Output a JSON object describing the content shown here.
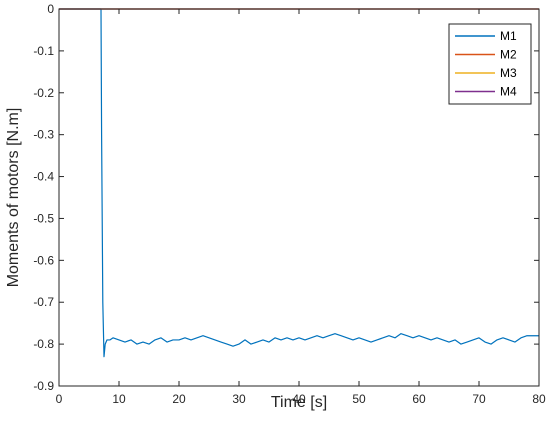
{
  "chart_data": {
    "type": "line",
    "title": "",
    "xlabel": "Time [s]",
    "ylabel": "Moments of motors [N.m]",
    "xlim": [
      0,
      80
    ],
    "ylim": [
      -0.9,
      0
    ],
    "xticks": [
      0,
      10,
      20,
      30,
      40,
      50,
      60,
      70,
      80
    ],
    "yticks": [
      0,
      -0.1,
      -0.2,
      -0.3,
      -0.4,
      -0.5,
      -0.6,
      -0.7,
      -0.8,
      -0.9
    ],
    "xtick_labels": [
      "0",
      "10",
      "20",
      "30",
      "40",
      "50",
      "60",
      "70",
      "80"
    ],
    "ytick_labels": [
      "0",
      "-0.1",
      "-0.2",
      "-0.3",
      "-0.4",
      "-0.5",
      "-0.6",
      "-0.7",
      "-0.8",
      "-0.9"
    ],
    "grid": false,
    "legend_position": "top-right",
    "series": [
      {
        "name": "M1",
        "color": "#0072BD",
        "x": [
          0,
          7.0,
          7.1,
          7.3,
          7.5,
          7.7,
          8.0,
          8.5,
          9,
          10,
          11,
          12,
          13,
          14,
          15,
          16,
          17,
          18,
          19,
          20,
          21,
          22,
          23,
          24,
          25,
          26,
          27,
          28,
          29,
          30,
          31,
          32,
          33,
          34,
          35,
          36,
          37,
          38,
          39,
          40,
          41,
          42,
          43,
          44,
          45,
          46,
          47,
          48,
          49,
          50,
          51,
          52,
          53,
          54,
          55,
          56,
          57,
          58,
          59,
          60,
          61,
          62,
          63,
          64,
          65,
          66,
          67,
          68,
          69,
          70,
          71,
          72,
          73,
          74,
          75,
          76,
          77,
          78,
          79,
          80
        ],
        "y": [
          0,
          0,
          -0.3,
          -0.7,
          -0.83,
          -0.8,
          -0.79,
          -0.79,
          -0.785,
          -0.79,
          -0.795,
          -0.79,
          -0.8,
          -0.795,
          -0.8,
          -0.79,
          -0.785,
          -0.795,
          -0.79,
          -0.79,
          -0.785,
          -0.79,
          -0.785,
          -0.78,
          -0.785,
          -0.79,
          -0.795,
          -0.8,
          -0.805,
          -0.8,
          -0.79,
          -0.8,
          -0.795,
          -0.79,
          -0.795,
          -0.785,
          -0.79,
          -0.785,
          -0.79,
          -0.785,
          -0.79,
          -0.785,
          -0.78,
          -0.785,
          -0.78,
          -0.775,
          -0.78,
          -0.785,
          -0.79,
          -0.785,
          -0.79,
          -0.795,
          -0.79,
          -0.785,
          -0.78,
          -0.785,
          -0.775,
          -0.78,
          -0.785,
          -0.78,
          -0.785,
          -0.79,
          -0.785,
          -0.79,
          -0.795,
          -0.79,
          -0.8,
          -0.795,
          -0.79,
          -0.785,
          -0.795,
          -0.8,
          -0.79,
          -0.785,
          -0.79,
          -0.795,
          -0.785,
          -0.78,
          -0.78,
          -0.78
        ]
      },
      {
        "name": "M2",
        "color": "#D95319",
        "x": [
          0,
          80
        ],
        "y": [
          0,
          0
        ]
      },
      {
        "name": "M3",
        "color": "#EDB120",
        "x": [
          0,
          80
        ],
        "y": [
          0,
          0
        ]
      },
      {
        "name": "M4",
        "color": "#7E2F8E",
        "x": [
          0,
          80
        ],
        "y": [
          0,
          0
        ]
      }
    ]
  }
}
